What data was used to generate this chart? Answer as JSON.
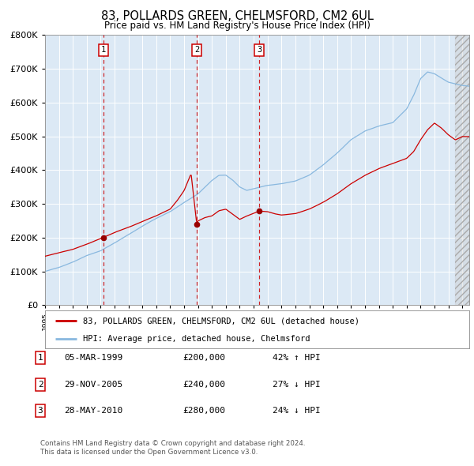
{
  "title": "83, POLLARDS GREEN, CHELMSFORD, CM2 6UL",
  "subtitle": "Price paid vs. HM Land Registry's House Price Index (HPI)",
  "plot_bg_color": "#dce9f5",
  "hpi_color": "#89b8df",
  "price_color": "#cc0000",
  "vline_color": "#cc0000",
  "xmin": 1995.0,
  "xmax": 2025.5,
  "ymin": 0,
  "ymax": 800000,
  "yticks": [
    0,
    100000,
    200000,
    300000,
    400000,
    500000,
    600000,
    700000,
    800000
  ],
  "xticks": [
    1995,
    1996,
    1997,
    1998,
    1999,
    2000,
    2001,
    2002,
    2003,
    2004,
    2005,
    2006,
    2007,
    2008,
    2009,
    2010,
    2011,
    2012,
    2013,
    2014,
    2015,
    2016,
    2017,
    2018,
    2019,
    2020,
    2021,
    2022,
    2023,
    2024,
    2025
  ],
  "sale_dates": [
    1999.18,
    2005.91,
    2010.4
  ],
  "sale_prices": [
    200000,
    240000,
    280000
  ],
  "sale_labels": [
    "1",
    "2",
    "3"
  ],
  "legend_price_label": "83, POLLARDS GREEN, CHELMSFORD, CM2 6UL (detached house)",
  "legend_hpi_label": "HPI: Average price, detached house, Chelmsford",
  "table_rows": [
    {
      "num": "1",
      "date": "05-MAR-1999",
      "price": "£200,000",
      "hpi": "42% ↑ HPI"
    },
    {
      "num": "2",
      "date": "29-NOV-2005",
      "price": "£240,000",
      "hpi": "27% ↓ HPI"
    },
    {
      "num": "3",
      "date": "28-MAY-2010",
      "price": "£280,000",
      "hpi": "24% ↓ HPI"
    }
  ],
  "footnote1": "Contains HM Land Registry data © Crown copyright and database right 2024.",
  "footnote2": "This data is licensed under the Open Government Licence v3.0.",
  "grid_color": "#ffffff",
  "hpi_anchors_x": [
    1995,
    1996,
    1997,
    1998,
    1999,
    2000,
    2001,
    2002,
    2003,
    2004,
    2005,
    2006,
    2007,
    2007.5,
    2008,
    2008.5,
    2009,
    2009.5,
    2010,
    2011,
    2012,
    2013,
    2014,
    2015,
    2016,
    2017,
    2018,
    2019,
    2020,
    2021,
    2021.5,
    2022,
    2022.5,
    2023,
    2023.5,
    2024,
    2025,
    2025.5
  ],
  "hpi_anchors_y": [
    100000,
    112000,
    128000,
    148000,
    162000,
    185000,
    210000,
    235000,
    258000,
    278000,
    305000,
    330000,
    370000,
    385000,
    385000,
    370000,
    350000,
    340000,
    345000,
    355000,
    360000,
    368000,
    385000,
    415000,
    450000,
    490000,
    515000,
    530000,
    540000,
    580000,
    620000,
    670000,
    690000,
    685000,
    672000,
    660000,
    650000,
    648000
  ],
  "price_anchors_x": [
    1995,
    1996,
    1997,
    1998,
    1999.18,
    2000,
    2001,
    2002,
    2003,
    2004,
    2004.5,
    2005,
    2005.5,
    2005.91,
    2006,
    2006.5,
    2007,
    2007.5,
    2008,
    2008.5,
    2009,
    2009.5,
    2010.4,
    2011,
    2011.5,
    2012,
    2013,
    2014,
    2015,
    2016,
    2017,
    2018,
    2019,
    2020,
    2021,
    2021.5,
    2022,
    2022.5,
    2023,
    2023.5,
    2024,
    2024.5,
    2025,
    2025.5
  ],
  "price_anchors_y": [
    145000,
    155000,
    165000,
    180000,
    200000,
    215000,
    230000,
    248000,
    265000,
    285000,
    310000,
    340000,
    390000,
    240000,
    250000,
    260000,
    265000,
    280000,
    285000,
    270000,
    255000,
    265000,
    280000,
    278000,
    272000,
    268000,
    272000,
    285000,
    305000,
    330000,
    360000,
    385000,
    405000,
    420000,
    435000,
    455000,
    490000,
    520000,
    540000,
    525000,
    505000,
    490000,
    500000,
    500000
  ]
}
